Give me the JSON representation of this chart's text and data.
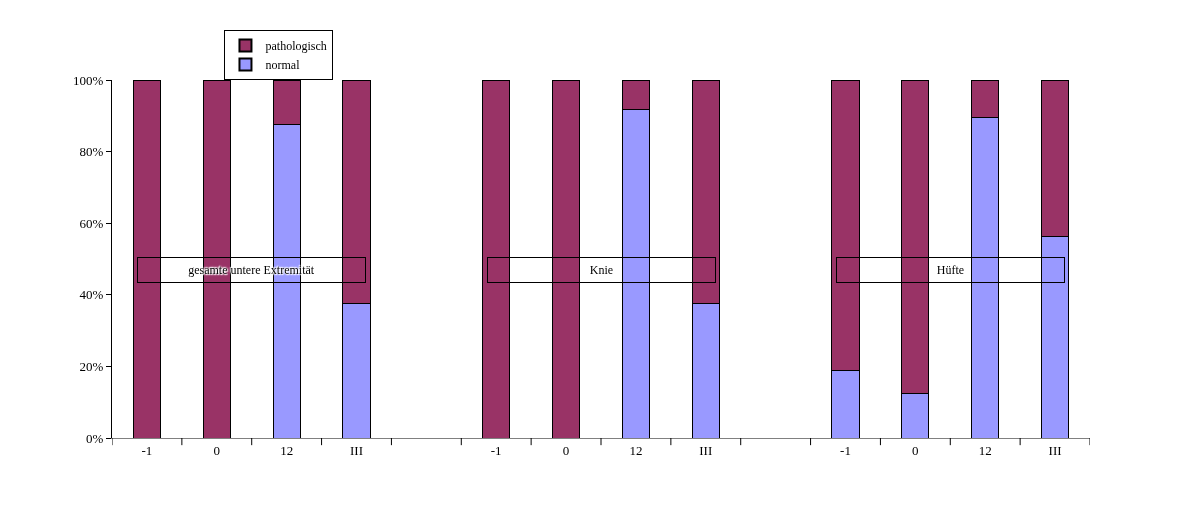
{
  "chart_data": {
    "type": "bar",
    "stacked": true,
    "categories": [
      "-1",
      "0",
      "12",
      "III",
      null,
      "-1",
      "0",
      "12",
      "III",
      null,
      "-1",
      "0",
      "12",
      "III"
    ],
    "series": [
      {
        "name": "normal",
        "color": "#9999ff",
        "values": [
          0,
          0,
          87.5,
          37.5,
          null,
          0,
          0,
          91.7,
          37.5,
          null,
          18.8,
          12.5,
          89.5,
          56.2
        ]
      },
      {
        "name": "pathologisch",
        "color": "#993366",
        "values": [
          100,
          100,
          12.5,
          62.5,
          null,
          100,
          100,
          8.3,
          62.5,
          null,
          81.2,
          87.5,
          10.5,
          43.8
        ]
      }
    ],
    "ylim": [
      0,
      100
    ],
    "yticks": [
      {
        "value": 0,
        "label": "0%"
      },
      {
        "value": 20,
        "label": "20%"
      },
      {
        "value": 40,
        "label": "40%"
      },
      {
        "value": 60,
        "label": "60%"
      },
      {
        "value": 80,
        "label": "80%"
      },
      {
        "value": 100,
        "label": "100%"
      }
    ],
    "annotations": [
      "gesamte untere Extremität",
      "Knie",
      "Hüfte"
    ],
    "legend": "top left"
  }
}
